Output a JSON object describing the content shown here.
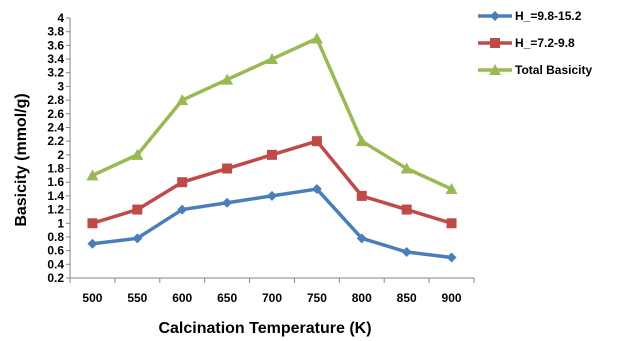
{
  "chart_data": {
    "type": "line",
    "title": "",
    "xlabel": "Calcination Temperature (K)",
    "ylabel": "Basicity (mmol/g)",
    "categories": [
      "500",
      "550",
      "600",
      "650",
      "700",
      "750",
      "800",
      "850",
      "900"
    ],
    "yticks": [
      "0.2",
      "0.4",
      "0.6",
      "0.8",
      "1",
      "1.2",
      "1.4",
      "1.6",
      "1.8",
      "2",
      "2.2",
      "2.4",
      "2.6",
      "2.8",
      "3",
      "3.2",
      "3.4",
      "3.6",
      "3.8",
      "4"
    ],
    "ylim": [
      0.2,
      4
    ],
    "grid": false,
    "legend_position": "right",
    "series": [
      {
        "name": "H_=9.8-15.2",
        "color": "#4a7ebb",
        "marker": "diamond",
        "values": [
          0.7,
          0.78,
          1.2,
          1.3,
          1.4,
          1.5,
          0.78,
          0.58,
          0.5
        ]
      },
      {
        "name": "H_=7.2-9.8",
        "color": "#be4b48",
        "marker": "square",
        "values": [
          1.0,
          1.2,
          1.6,
          1.8,
          2.0,
          2.2,
          1.4,
          1.2,
          1.0
        ]
      },
      {
        "name": "Total Basicity",
        "color": "#98b954",
        "marker": "triangle",
        "values": [
          1.7,
          2.0,
          2.8,
          3.1,
          3.4,
          3.7,
          2.2,
          1.8,
          1.5
        ]
      }
    ]
  }
}
